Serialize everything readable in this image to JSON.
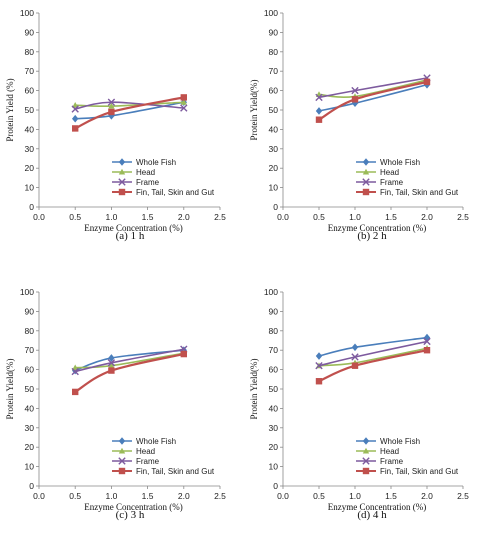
{
  "chart_data": [
    {
      "type": "line",
      "caption": "(a) 1 h",
      "xlabel": "Enzyme Concentration (%)",
      "ylabel": "Protein Yield (%)",
      "xlim": [
        0,
        2.5
      ],
      "ylim": [
        0,
        100
      ],
      "xticks": [
        "0.0",
        "0.5",
        "1.0",
        "1.5",
        "2.0",
        "2.5"
      ],
      "yticks": [
        "0",
        "10",
        "20",
        "30",
        "40",
        "50",
        "60",
        "70",
        "80",
        "90",
        "100"
      ],
      "legend_position": "bottom-right",
      "x": [
        0.5,
        1.0,
        2.0
      ],
      "series": [
        {
          "name": "Whole Fish",
          "values": [
            45.5,
            47,
            54
          ],
          "color": "#4a7ebb",
          "marker": "diamond"
        },
        {
          "name": "Head",
          "values": [
            52.5,
            52,
            54
          ],
          "color": "#9bbb59",
          "marker": "triangle"
        },
        {
          "name": "Frame",
          "values": [
            50.5,
            54,
            51
          ],
          "color": "#7d5a9e",
          "marker": "x"
        },
        {
          "name": "Fin, Tail, Skin and Gut",
          "values": [
            40.5,
            49,
            56.5
          ],
          "color": "#c0504d",
          "marker": "square"
        }
      ]
    },
    {
      "type": "line",
      "caption": "(b) 2 h",
      "xlabel": "Enzyme Concentration (%)",
      "ylabel": "Protein Yield(%)",
      "xlim": [
        0,
        2.5
      ],
      "ylim": [
        0,
        100
      ],
      "xticks": [
        "0.0",
        "0.5",
        "1.0",
        "1.5",
        "2.0",
        "2.5"
      ],
      "yticks": [
        "0",
        "10",
        "20",
        "30",
        "40",
        "50",
        "60",
        "70",
        "80",
        "90",
        "100"
      ],
      "legend_position": "bottom-right",
      "x": [
        0.5,
        1.0,
        2.0
      ],
      "series": [
        {
          "name": "Whole Fish",
          "values": [
            49.5,
            53.5,
            63
          ],
          "color": "#4a7ebb",
          "marker": "diamond"
        },
        {
          "name": "Head",
          "values": [
            58,
            57,
            65.5
          ],
          "color": "#9bbb59",
          "marker": "triangle"
        },
        {
          "name": "Frame",
          "values": [
            56.5,
            60,
            66.5
          ],
          "color": "#7d5a9e",
          "marker": "x"
        },
        {
          "name": "Fin, Tail, Skin and Gut",
          "values": [
            45,
            55.5,
            64.5
          ],
          "color": "#c0504d",
          "marker": "square"
        }
      ]
    },
    {
      "type": "line",
      "caption": "(c) 3 h",
      "xlabel": "Enzyme Concentration (%)",
      "ylabel": "Protein Yield(%)",
      "xlim": [
        0,
        2.5
      ],
      "ylim": [
        0,
        100
      ],
      "xticks": [
        "0.0",
        "0.5",
        "1.0",
        "1.5",
        "2.0",
        "2.5"
      ],
      "yticks": [
        "0",
        "10",
        "20",
        "30",
        "40",
        "50",
        "60",
        "70",
        "80",
        "90",
        "100"
      ],
      "legend_position": "bottom-right",
      "x": [
        0.5,
        1.0,
        2.0
      ],
      "series": [
        {
          "name": "Whole Fish",
          "values": [
            59.5,
            66,
            70
          ],
          "color": "#4a7ebb",
          "marker": "diamond"
        },
        {
          "name": "Head",
          "values": [
            61,
            62,
            68.5
          ],
          "color": "#9bbb59",
          "marker": "triangle"
        },
        {
          "name": "Frame",
          "values": [
            59,
            63.5,
            70.5
          ],
          "color": "#7d5a9e",
          "marker": "x"
        },
        {
          "name": "Fin, Tail, Skin and Gut",
          "values": [
            48.5,
            59.5,
            68
          ],
          "color": "#c0504d",
          "marker": "square"
        }
      ]
    },
    {
      "type": "line",
      "caption": "(d) 4 h",
      "xlabel": "Enzyme Concentration (%)",
      "ylabel": "Protein Yield(%)",
      "xlim": [
        0,
        2.5
      ],
      "ylim": [
        0,
        100
      ],
      "xticks": [
        "0.0",
        "0.5",
        "1.0",
        "1.5",
        "2.0",
        "2.5"
      ],
      "yticks": [
        "0",
        "10",
        "20",
        "30",
        "40",
        "50",
        "60",
        "70",
        "80",
        "90",
        "100"
      ],
      "legend_position": "bottom-right",
      "x": [
        0.5,
        1.0,
        2.0
      ],
      "series": [
        {
          "name": "Whole Fish",
          "values": [
            67,
            71.5,
            76.5
          ],
          "color": "#4a7ebb",
          "marker": "diamond"
        },
        {
          "name": "Head",
          "values": [
            62,
            63.5,
            71
          ],
          "color": "#9bbb59",
          "marker": "triangle"
        },
        {
          "name": "Frame",
          "values": [
            62,
            66.5,
            74.5
          ],
          "color": "#7d5a9e",
          "marker": "x"
        },
        {
          "name": "Fin, Tail, Skin and Gut",
          "values": [
            54,
            62,
            70
          ],
          "color": "#c0504d",
          "marker": "square"
        }
      ]
    }
  ]
}
